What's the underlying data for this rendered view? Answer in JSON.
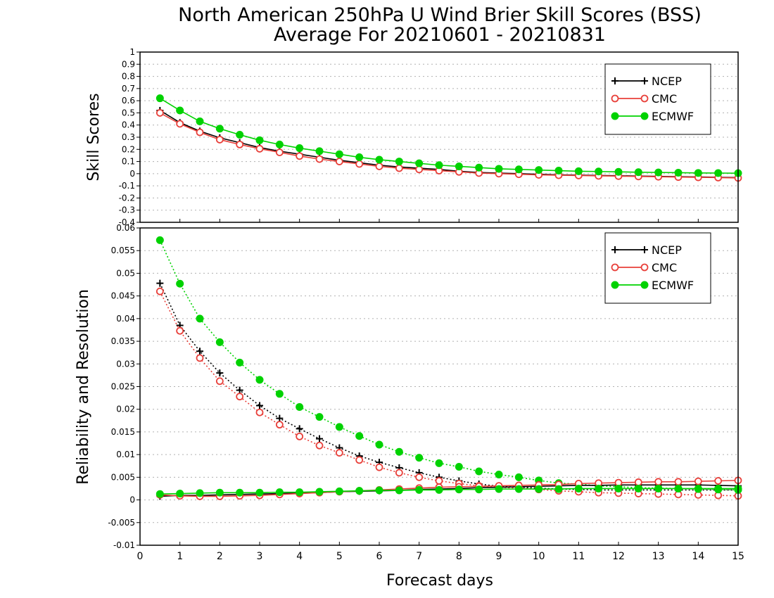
{
  "title_line1": "North American 250hPa U Wind Brier Skill Scores (BSS)",
  "title_line2": "Average For 20210601 - 20210831",
  "xlabel": "Forecast days",
  "colors": {
    "NCEP": "#000000",
    "CMC": "#e8403a",
    "ECMWF": "#00d200"
  },
  "chart_data": [
    {
      "type": "line",
      "ylabel": "Skill Scores",
      "xlim": [
        0,
        15
      ],
      "ylim": [
        -0.4,
        1
      ],
      "yticks": [
        "1",
        "0.9",
        "0.8",
        "0.7",
        "0.6",
        "0.5",
        "0.4",
        "0.3",
        "0.2",
        "0.1",
        "0",
        "-0.1",
        "-0.2",
        "-0.3",
        "-0.4"
      ],
      "xticks": [
        "0",
        "1",
        "2",
        "3",
        "4",
        "5",
        "6",
        "7",
        "8",
        "9",
        "10",
        "11",
        "12",
        "13",
        "14",
        "15"
      ],
      "grid": true,
      "legend": "top-right",
      "x": [
        0.5,
        1,
        1.5,
        2,
        2.5,
        3,
        3.5,
        4,
        4.5,
        5,
        5.5,
        6,
        6.5,
        7,
        7.5,
        8,
        8.5,
        9,
        9.5,
        10,
        10.5,
        11,
        11.5,
        12,
        12.5,
        13,
        13.5,
        14,
        14.5,
        15
      ],
      "series": [
        {
          "name": "NCEP",
          "marker": "plus",
          "dash": false,
          "values": [
            0.52,
            0.42,
            0.35,
            0.295,
            0.255,
            0.215,
            0.185,
            0.16,
            0.135,
            0.11,
            0.09,
            0.07,
            0.055,
            0.045,
            0.035,
            0.02,
            0.01,
            0.005,
            0,
            -0.005,
            -0.01,
            -0.012,
            -0.015,
            -0.017,
            -0.02,
            -0.022,
            -0.025,
            -0.027,
            -0.03,
            -0.032
          ]
        },
        {
          "name": "CMC",
          "marker": "circle-open",
          "dash": false,
          "values": [
            0.5,
            0.41,
            0.34,
            0.28,
            0.24,
            0.205,
            0.175,
            0.145,
            0.12,
            0.1,
            0.08,
            0.06,
            0.045,
            0.035,
            0.025,
            0.015,
            0.005,
            0,
            -0.005,
            -0.01,
            -0.013,
            -0.015,
            -0.018,
            -0.02,
            -0.023,
            -0.025,
            -0.028,
            -0.03,
            -0.032,
            -0.035
          ]
        },
        {
          "name": "ECMWF",
          "marker": "circle-filled",
          "dash": false,
          "values": [
            0.62,
            0.52,
            0.43,
            0.37,
            0.32,
            0.275,
            0.24,
            0.21,
            0.185,
            0.16,
            0.135,
            0.115,
            0.1,
            0.085,
            0.07,
            0.06,
            0.05,
            0.04,
            0.035,
            0.03,
            0.025,
            0.02,
            0.018,
            0.015,
            0.012,
            0.01,
            0.008,
            0.006,
            0.005,
            0.004
          ]
        }
      ]
    },
    {
      "type": "line",
      "ylabel": "Reliability and Resolution",
      "xlim": [
        0,
        15
      ],
      "ylim": [
        -0.01,
        0.06
      ],
      "yticks": [
        "0.06",
        "0.055",
        "0.05",
        "0.045",
        "0.04",
        "0.035",
        "0.03",
        "0.025",
        "0.02",
        "0.015",
        "0.01",
        "0.005",
        "0",
        "-0.005",
        "-0.01"
      ],
      "xticks": [
        "0",
        "1",
        "2",
        "3",
        "4",
        "5",
        "6",
        "7",
        "8",
        "9",
        "10",
        "11",
        "12",
        "13",
        "14",
        "15"
      ],
      "grid": true,
      "legend": "top-right",
      "x": [
        0.5,
        1,
        1.5,
        2,
        2.5,
        3,
        3.5,
        4,
        4.5,
        5,
        5.5,
        6,
        6.5,
        7,
        7.5,
        8,
        8.5,
        9,
        9.5,
        10,
        10.5,
        11,
        11.5,
        12,
        12.5,
        13,
        13.5,
        14,
        14.5,
        15
      ],
      "series": [
        {
          "name": "NCEP",
          "kind": "reliability",
          "marker": "plus",
          "dash": true,
          "values": [
            0.0478,
            0.0385,
            0.0328,
            0.028,
            0.0242,
            0.0208,
            0.018,
            0.0157,
            0.0135,
            0.0115,
            0.0097,
            0.0083,
            0.0071,
            0.006,
            0.005,
            0.0042,
            0.0035,
            0.003,
            0.0028,
            0.0026,
            0.0024,
            0.0023,
            0.0022,
            0.0022,
            0.0022,
            0.0022,
            0.0022,
            0.0022,
            0.0022,
            0.0022
          ]
        },
        {
          "name": "CMC",
          "kind": "reliability",
          "marker": "circle-open",
          "dash": true,
          "values": [
            0.046,
            0.0373,
            0.0313,
            0.0262,
            0.0228,
            0.0193,
            0.0166,
            0.014,
            0.012,
            0.0104,
            0.0088,
            0.0072,
            0.006,
            0.005,
            0.0042,
            0.0036,
            0.0031,
            0.0028,
            0.0026,
            0.0023,
            0.002,
            0.0018,
            0.0016,
            0.0015,
            0.0014,
            0.0013,
            0.0012,
            0.0011,
            0.001,
            0.0009
          ]
        },
        {
          "name": "ECMWF",
          "kind": "reliability",
          "marker": "circle-filled",
          "dash": true,
          "values": [
            0.0573,
            0.0477,
            0.04,
            0.0348,
            0.0303,
            0.0265,
            0.0234,
            0.0205,
            0.0183,
            0.0161,
            0.0141,
            0.0122,
            0.0106,
            0.0093,
            0.0081,
            0.0073,
            0.0063,
            0.0056,
            0.005,
            0.0043,
            0.0037,
            0.0035,
            0.0031,
            0.0029,
            0.0027,
            0.0026,
            0.0025,
            0.0024,
            0.0023,
            0.0022
          ]
        },
        {
          "name": "NCEP",
          "kind": "resolution",
          "marker": "plus",
          "dash": false,
          "values": [
            0.0008,
            0.001,
            0.001,
            0.0011,
            0.0012,
            0.0013,
            0.0014,
            0.0015,
            0.0016,
            0.0018,
            0.0019,
            0.002,
            0.0021,
            0.0023,
            0.0024,
            0.0025,
            0.0027,
            0.0028,
            0.0029,
            0.003,
            0.0031,
            0.0032,
            0.0032,
            0.0033,
            0.0033,
            0.0033,
            0.0033,
            0.0033,
            0.0032,
            0.0031
          ]
        },
        {
          "name": "CMC",
          "kind": "resolution",
          "marker": "circle-open",
          "dash": false,
          "values": [
            0.0011,
            0.0009,
            0.0008,
            0.0008,
            0.0009,
            0.001,
            0.0012,
            0.0014,
            0.0016,
            0.0018,
            0.002,
            0.0022,
            0.0024,
            0.0026,
            0.0028,
            0.0029,
            0.003,
            0.0031,
            0.0032,
            0.0033,
            0.0034,
            0.0036,
            0.0037,
            0.0038,
            0.0039,
            0.004,
            0.004,
            0.0041,
            0.0042,
            0.0043
          ]
        },
        {
          "name": "ECMWF",
          "kind": "resolution",
          "marker": "circle-filled",
          "dash": false,
          "values": [
            0.0013,
            0.0014,
            0.0015,
            0.0016,
            0.0016,
            0.0016,
            0.0017,
            0.0017,
            0.0018,
            0.0019,
            0.002,
            0.0021,
            0.0021,
            0.0022,
            0.0022,
            0.0023,
            0.0023,
            0.0024,
            0.0024,
            0.0024,
            0.0024,
            0.0025,
            0.0025,
            0.0025,
            0.0025,
            0.0025,
            0.0025,
            0.0025,
            0.0025,
            0.0025
          ]
        }
      ]
    }
  ]
}
